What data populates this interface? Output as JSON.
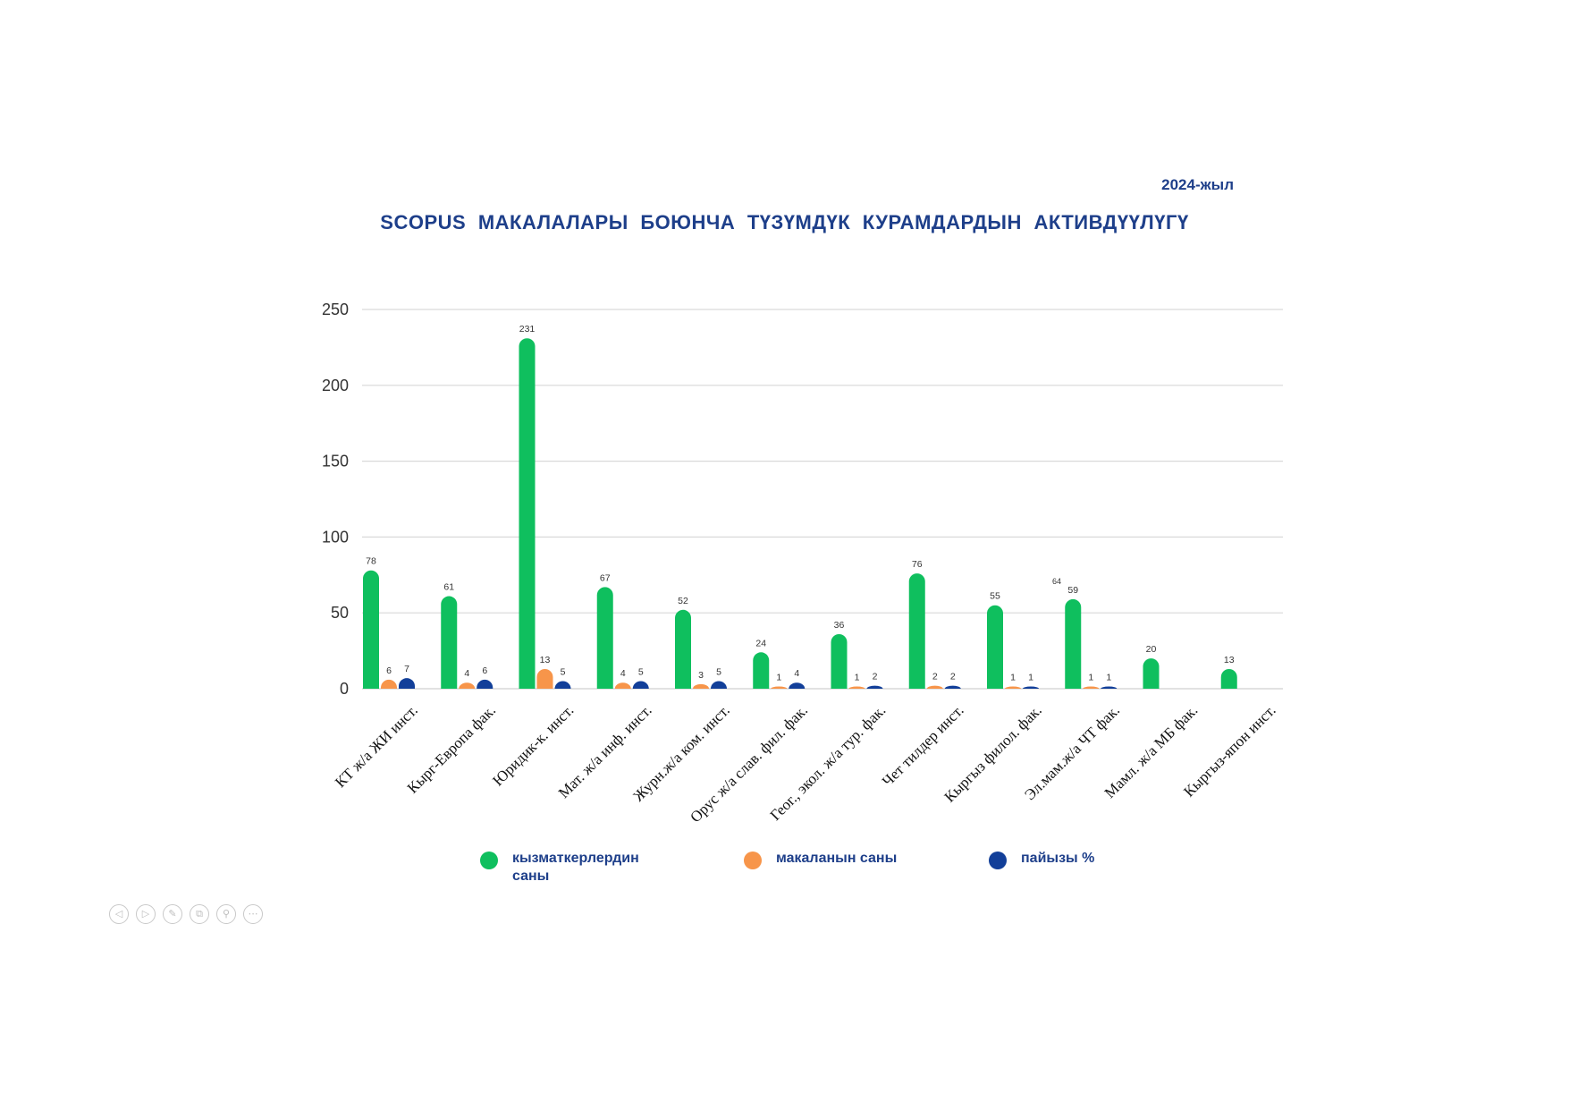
{
  "header": {
    "year": "2024-жыл",
    "title": "SCOPUS МАКАЛАЛАРЫ БОЮНЧА ТҮЗҮМДҮК КУРАМДАРДЫН АКТИВДҮҮЛҮГҮ"
  },
  "colors": {
    "staff": "#0fbf5e",
    "articles": "#f7954a",
    "percent": "#123f99",
    "grid": "#d9d9d9",
    "axis_text": "#333333"
  },
  "chart_data": {
    "type": "bar",
    "title": "SCOPUS МАКАЛАЛАРЫ БОЮНЧА ТҮЗҮМДҮК КУРАМДАРДЫН АКТИВДҮҮЛҮГҮ",
    "xlabel": "",
    "ylabel": "",
    "ylim": [
      0,
      250
    ],
    "yticks": [
      0,
      50,
      100,
      150,
      200,
      250
    ],
    "grid": true,
    "legend_position": "bottom",
    "categories": [
      "КТ ж/а ЖИ инст.",
      "Кырг-Европа фак.",
      "Юридик-к. инст.",
      "Мат. ж/а инф. инст.",
      "Журн.ж/а ком. инст.",
      "Орус ж/а слав. фил. фак.",
      "Геог., экол. ж/а тур. фак.",
      "Чет тилдер инст.",
      "Кыргыз филол. фак.",
      "Эл.мам.ж/а ЧТ фак.",
      "Мамл. ж/а МБ фак.",
      "Кыргыз-япон инст."
    ],
    "series": [
      {
        "name": "кызматкерлердин саны",
        "values": [
          78,
          61,
          231,
          67,
          52,
          24,
          36,
          76,
          55,
          59,
          20,
          13
        ]
      },
      {
        "name": "макаланын саны",
        "values": [
          6,
          4,
          13,
          4,
          3,
          1,
          1,
          2,
          1,
          1,
          null,
          null
        ]
      },
      {
        "name": "пайызы %",
        "values": [
          7,
          6,
          5,
          5,
          5,
          4,
          2,
          2,
          1,
          1,
          null,
          null
        ]
      }
    ],
    "annotations": [
      {
        "text": "64"
      }
    ]
  },
  "controls": [
    "◁",
    "▷",
    "✎",
    "⧉",
    "⚲",
    "⋯"
  ]
}
